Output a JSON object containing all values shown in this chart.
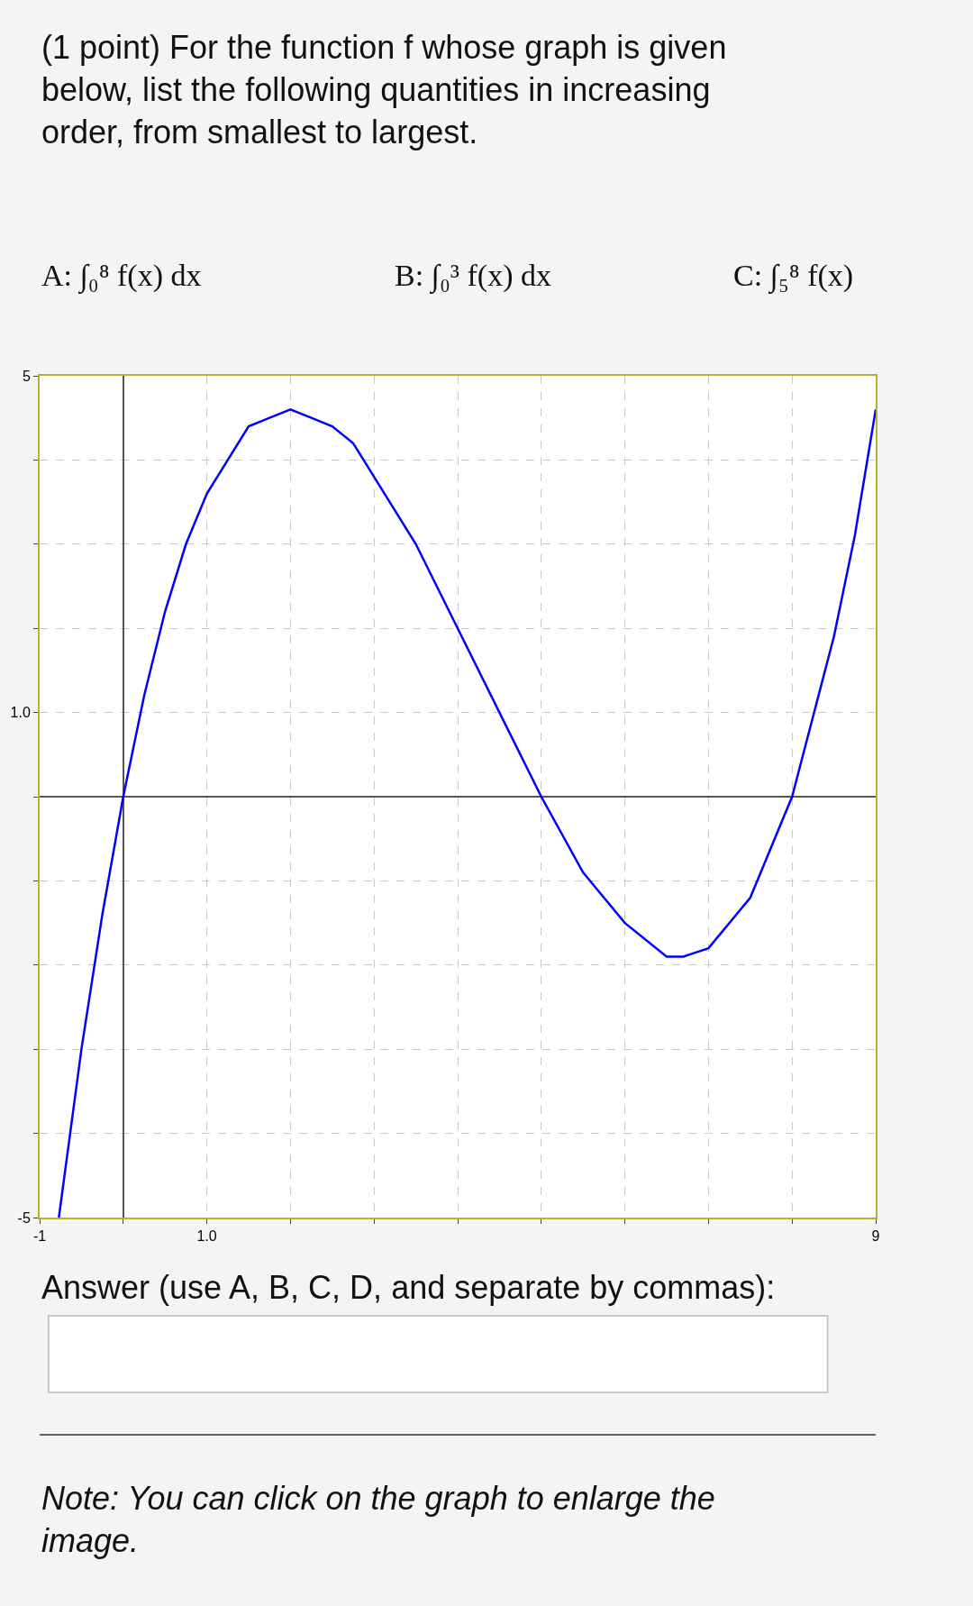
{
  "chart_data": {
    "type": "line",
    "title": "(1 point) For the function f whose graph is given below, list the following quantities in increasing order, from smallest to largest.",
    "annotations": [
      "A: ∫₀⁸ f(x) dx",
      "B: ∫₀³ f(x) dx",
      "C: ∫₅⁸ f(x)",
      "Answer (use A, B, C, D, and separate by commas):",
      "Note: You can click on the graph to enlarge the image."
    ],
    "x": [
      -0.77,
      -0.5,
      -0.25,
      0,
      0.25,
      0.5,
      0.75,
      1,
      1.25,
      1.5,
      1.75,
      2,
      2.25,
      2.5,
      2.75,
      3,
      3.5,
      4,
      4.5,
      5,
      5.5,
      6,
      6.5,
      6.7,
      7,
      7.5,
      8,
      8.5,
      8.75,
      9
    ],
    "series": [
      {
        "color": "#0000ff",
        "values": [
          -5.0,
          -3.0,
          -1.4,
          0,
          1.2,
          2.2,
          3.0,
          3.6,
          4.0,
          4.4,
          4.5,
          4.6,
          4.5,
          4.4,
          4.2,
          3.8,
          3.0,
          2.0,
          1.0,
          0,
          -0.9,
          -1.5,
          -1.9,
          -1.9,
          -1.8,
          -1.2,
          0,
          1.9,
          3.1,
          4.6
        ]
      }
    ],
    "xlim": [
      -1,
      9
    ],
    "ylim": [
      -5,
      5
    ],
    "xticks": [
      {
        "value": -1,
        "label": "-1"
      },
      {
        "value": 0,
        "label": null
      },
      {
        "value": 1,
        "label": "1.0"
      },
      {
        "value": 2,
        "label": null
      },
      {
        "value": 3,
        "label": null
      },
      {
        "value": 4,
        "label": null
      },
      {
        "value": 5,
        "label": null
      },
      {
        "value": 6,
        "label": null
      },
      {
        "value": 7,
        "label": null
      },
      {
        "value": 8,
        "label": null
      },
      {
        "value": 9,
        "label": "9"
      }
    ],
    "yticks": [
      {
        "value": -5,
        "label": "-5"
      },
      {
        "value": -4,
        "label": null
      },
      {
        "value": -3,
        "label": null
      },
      {
        "value": -2,
        "label": null
      },
      {
        "value": -1,
        "label": null
      },
      {
        "value": 0,
        "label": null
      },
      {
        "value": 1,
        "label": "1.0"
      },
      {
        "value": 2,
        "label": null
      },
      {
        "value": 3,
        "label": null
      },
      {
        "value": 4,
        "label": null
      },
      {
        "value": 5,
        "label": "5"
      }
    ],
    "grid": true,
    "marker": "none",
    "line_style": "solid",
    "legend": false
  }
}
